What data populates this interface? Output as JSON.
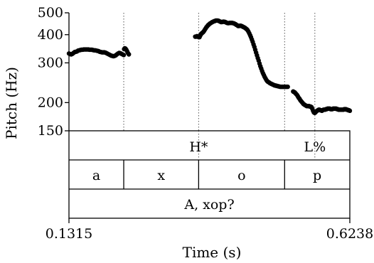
{
  "chart_data": {
    "type": "scatter",
    "title": "",
    "xlabel": "Time (s)",
    "ylabel": "Pitch (Hz)",
    "xlim": [
      0.1315,
      0.6238
    ],
    "ylim": [
      150,
      500
    ],
    "yscale": "log",
    "x_tick_labels": [
      "0.1315",
      "0.6238"
    ],
    "y_ticks": [
      {
        "value": 150,
        "label": "150"
      },
      {
        "value": 200,
        "label": "200"
      },
      {
        "value": 300,
        "label": "300"
      },
      {
        "value": 400,
        "label": "400"
      },
      {
        "value": 500,
        "label": "500"
      }
    ],
    "grid": false,
    "boundaries": [
      0.2275,
      0.3588,
      0.5095,
      0.5625
    ],
    "series": [
      {
        "x": [
          0.1315,
          0.1335,
          0.1355,
          0.1375,
          0.1395,
          0.1415,
          0.1435,
          0.1455,
          0.1475,
          0.1495,
          0.1515,
          0.1535,
          0.1555,
          0.1575,
          0.1595,
          0.1615,
          0.1635,
          0.1655,
          0.1675,
          0.1695,
          0.1715,
          0.1735,
          0.1755,
          0.1775,
          0.1795,
          0.1815,
          0.1835,
          0.1855,
          0.1875,
          0.1895,
          0.1915,
          0.1935,
          0.1955,
          0.1975,
          0.1995,
          0.2015,
          0.2035,
          0.2055,
          0.2075,
          0.2095,
          0.2115,
          0.2135,
          0.2155,
          0.2175,
          0.2195,
          0.2215,
          0.2235,
          0.2255,
          0.2275,
          0.2282,
          0.2292,
          0.2305,
          0.232,
          0.2335,
          0.235,
          0.2365
        ],
        "y": [
          330,
          328,
          327,
          329,
          332,
          335,
          336,
          337,
          340,
          341,
          342,
          343,
          343,
          344,
          344,
          344,
          344,
          344,
          343,
          343,
          343,
          342,
          341,
          341,
          340,
          339,
          338,
          336,
          335,
          334,
          334,
          334,
          333,
          331,
          329,
          327,
          325,
          323,
          322,
          321,
          322,
          324,
          327,
          330,
          332,
          331,
          329,
          327,
          325,
          345,
          348,
          347,
          343,
          337,
          331,
          327
        ]
      },
      {
        "x": [
          0.3528,
          0.3543,
          0.3558,
          0.3573,
          0.3588,
          0.3603,
          0.3613,
          0.3625,
          0.3635,
          0.365,
          0.3665,
          0.368,
          0.3695,
          0.371,
          0.3725,
          0.374,
          0.3755,
          0.377,
          0.3785,
          0.38,
          0.3815,
          0.383,
          0.3845,
          0.386,
          0.3875,
          0.389,
          0.3905,
          0.392,
          0.3935,
          0.395,
          0.3965,
          0.398,
          0.3995,
          0.401,
          0.4025,
          0.404,
          0.4055,
          0.407,
          0.4085,
          0.41,
          0.4115,
          0.413,
          0.4145,
          0.416,
          0.4175,
          0.419,
          0.4205,
          0.422,
          0.4235,
          0.425,
          0.4265,
          0.428,
          0.4295,
          0.431,
          0.4325,
          0.434,
          0.4355,
          0.437,
          0.4385,
          0.44,
          0.4415,
          0.443,
          0.4445,
          0.446,
          0.4475,
          0.449,
          0.4505,
          0.452,
          0.4535,
          0.455,
          0.4565,
          0.458,
          0.4595,
          0.461,
          0.4625,
          0.464,
          0.4655,
          0.467,
          0.4685,
          0.47,
          0.4715,
          0.473,
          0.4745,
          0.476,
          0.4775,
          0.479,
          0.4805,
          0.482,
          0.4835,
          0.485,
          0.4865,
          0.488,
          0.4895,
          0.491,
          0.4925,
          0.494,
          0.4955,
          0.497,
          0.4985,
          0.5,
          0.5015,
          0.503,
          0.5045,
          0.506,
          0.5075,
          0.509,
          0.5105,
          0.512,
          0.5135,
          0.515
        ],
        "y": [
          392,
          392,
          394,
          393,
          390,
          390,
          395,
          400,
          404,
          407,
          410,
          414,
          420,
          426,
          432,
          436,
          441,
          444,
          448,
          450,
          453,
          455,
          457,
          459,
          460,
          462,
          462,
          462,
          461,
          459,
          457,
          455,
          455,
          456,
          457,
          456,
          455,
          453,
          451,
          450,
          450,
          451,
          451,
          451,
          451,
          450,
          449,
          447,
          445,
          442,
          440,
          437,
          437,
          438,
          438,
          437,
          435,
          433,
          431,
          429,
          426,
          423,
          419,
          413,
          406,
          398,
          390,
          381,
          372,
          362,
          353,
          343,
          333,
          324,
          315,
          307,
          298,
          290,
          283,
          276,
          270,
          265,
          260,
          256,
          252,
          249,
          247,
          246,
          244,
          243,
          242,
          241,
          240,
          239,
          238,
          238,
          237,
          237,
          236,
          236,
          235,
          235,
          235,
          235,
          235,
          235,
          235,
          235,
          235,
          235
        ]
      },
      {
        "x": [
          0.5245,
          0.5258,
          0.5272,
          0.5286,
          0.53,
          0.5314,
          0.5328,
          0.5342,
          0.5356,
          0.537,
          0.5384,
          0.5398,
          0.5412,
          0.5426,
          0.544,
          0.5454,
          0.5468,
          0.5482,
          0.5496,
          0.551,
          0.5524,
          0.5538,
          0.5552,
          0.5566,
          0.558,
          0.5594,
          0.5608,
          0.5622,
          0.5636,
          0.565,
          0.5664,
          0.5678,
          0.5692,
          0.5706,
          0.572,
          0.5734,
          0.5748,
          0.5762,
          0.5776,
          0.579,
          0.5804,
          0.5818,
          0.5832,
          0.5846,
          0.586,
          0.5874,
          0.5888,
          0.5902,
          0.5916,
          0.593,
          0.5944,
          0.5958,
          0.5972,
          0.5986,
          0.6,
          0.6014,
          0.6028,
          0.6042,
          0.6056,
          0.607,
          0.6084,
          0.6098,
          0.6112,
          0.6126,
          0.614,
          0.6154,
          0.6168,
          0.6182,
          0.6196,
          0.621,
          0.6224,
          0.6238
        ],
        "y": [
          224,
          223,
          222,
          220,
          218,
          216,
          213,
          210,
          208,
          205,
          203,
          201,
          199,
          197,
          196,
          195,
          194,
          193,
          193,
          193,
          193,
          192,
          192,
          191,
          188,
          184,
          181,
          180,
          181,
          183,
          184,
          185,
          186,
          186,
          185,
          185,
          184,
          185,
          186,
          186,
          186,
          187,
          187,
          188,
          188,
          188,
          188,
          187,
          187,
          187,
          188,
          188,
          188,
          188,
          188,
          187,
          187,
          186,
          186,
          186,
          186,
          186,
          186,
          186,
          187,
          187,
          187,
          186,
          186,
          185,
          185,
          184
        ]
      }
    ]
  },
  "tiers": {
    "tones": [
      {
        "label": "H*",
        "time": 0.3588
      },
      {
        "label": "L%",
        "time": 0.5625
      }
    ],
    "segments": [
      {
        "label": "a",
        "start": 0.1315,
        "end": 0.2275
      },
      {
        "label": "x",
        "start": 0.2275,
        "end": 0.3588
      },
      {
        "label": "o",
        "start": 0.3588,
        "end": 0.5095
      },
      {
        "label": "p",
        "start": 0.5095,
        "end": 0.6238
      }
    ],
    "utterance": [
      {
        "label": "A, xop?",
        "start": 0.1315,
        "end": 0.6238
      }
    ]
  }
}
